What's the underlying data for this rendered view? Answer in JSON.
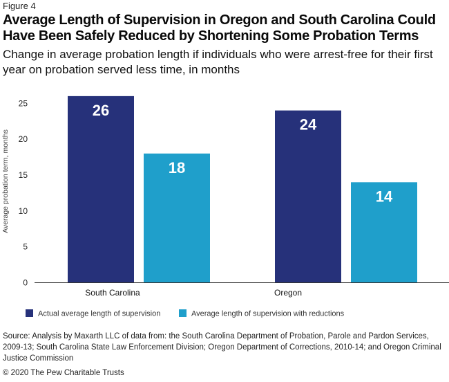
{
  "figure_label": "Figure 4",
  "title": "Average Length of Supervision in Oregon and South Carolina Could Have Been Safely Reduced by Shortening Some Probation Terms",
  "subtitle": "Change in average probation length if individuals who were arrest-free for their first year on probation served less time, in months",
  "source": "Source: Analysis by Maxarth LLC of data from: the South Carolina Department of Probation, Parole and Pardon Services, 2009-13; South Carolina State Law Enforcement Division; Oregon Department of Corrections, 2010-14; and Oregon Criminal Justice Commission",
  "copyright": "© 2020 The Pew Charitable Trusts",
  "chart_data": {
    "type": "bar",
    "categories": [
      "South Carolina",
      "Oregon"
    ],
    "series": [
      {
        "name": "Actual average length of supervision",
        "values": [
          26,
          24
        ],
        "color": "#26317a"
      },
      {
        "name": "Average length of supervision with reductions",
        "values": [
          18,
          14
        ],
        "color": "#1f9fcb"
      }
    ],
    "data_labels": [
      [
        "26",
        "24"
      ],
      [
        "18",
        "14"
      ]
    ],
    "ylabel": "Average probation term, months",
    "ylim": [
      0,
      26
    ],
    "yticks": [
      "0",
      "5",
      "10",
      "15",
      "20",
      "25"
    ],
    "legend_position": "bottom-left",
    "grid": false
  }
}
